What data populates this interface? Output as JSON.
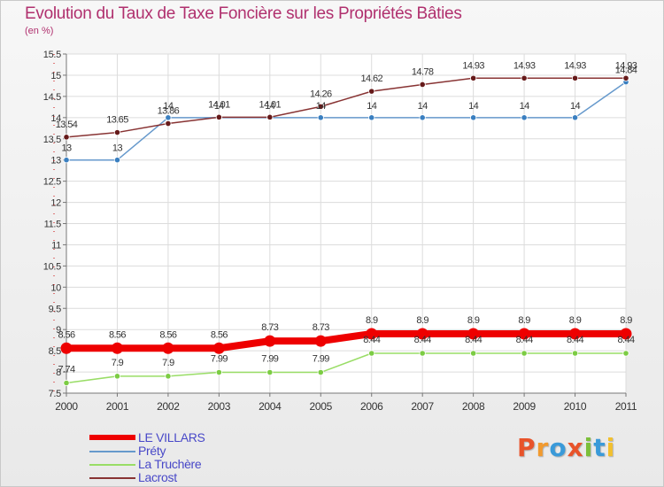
{
  "header": {
    "title": "Evolution du Taux de Taxe Foncière sur les Propriétés Bâties",
    "unit": "(en %)"
  },
  "logo": {
    "text": "Proxiti",
    "letters": [
      {
        "ch": "P",
        "color": "#e8532a"
      },
      {
        "ch": "r",
        "color": "#f29a2e"
      },
      {
        "ch": "o",
        "color": "#3a9ad9"
      },
      {
        "ch": "x",
        "color": "#e8532a"
      },
      {
        "ch": "i",
        "color": "#7cbf3a"
      },
      {
        "ch": "t",
        "color": "#3a9ad9"
      },
      {
        "ch": "i",
        "color": "#f2c02e"
      }
    ]
  },
  "chart_data": {
    "type": "line",
    "title": "Evolution du Taux de Taxe Foncière sur les Propriétés Bâties",
    "ylabel": "(en %)",
    "xlabel": "",
    "x": [
      "2000",
      "2001",
      "2002",
      "2003",
      "2004",
      "2005",
      "2006",
      "2007",
      "2008",
      "2009",
      "2010",
      "2011"
    ],
    "ylim": [
      7.5,
      15.5
    ],
    "yticks": [
      "7.5",
      "8",
      "8.5",
      "9",
      "9.5",
      "10",
      "10.5",
      "11",
      "11.5",
      "12",
      "12.5",
      "13",
      "13.5",
      "14",
      "14.5",
      "15",
      "15.5"
    ],
    "grid": true,
    "legend_position": "bottom-left",
    "series": [
      {
        "name": "LE VILLARS",
        "color": "#ee0000",
        "values": [
          8.56,
          8.56,
          8.56,
          8.56,
          8.73,
          8.73,
          8.9,
          8.9,
          8.9,
          8.9,
          8.9,
          8.9
        ],
        "labels": [
          "8.56",
          "8.56",
          "8.56",
          "8.56",
          "8.73",
          "8.73",
          "8.9",
          "8.9",
          "8.9",
          "8.9",
          "8.9",
          "8.9"
        ]
      },
      {
        "name": "Préty",
        "color": "#6699cc",
        "values": [
          13,
          13,
          14,
          14,
          14,
          14,
          14,
          14,
          14,
          14,
          14,
          14.84
        ],
        "labels": [
          "13",
          "13",
          "14",
          "14",
          "14",
          "14",
          "14",
          "14",
          "14",
          "14",
          "14",
          "14.84"
        ]
      },
      {
        "name": "La Truchère",
        "color": "#99dd66",
        "values": [
          7.74,
          7.9,
          7.9,
          7.99,
          7.99,
          7.99,
          8.44,
          8.44,
          8.44,
          8.44,
          8.44,
          8.44
        ],
        "labels": [
          "7.74",
          "7.9",
          "7.9",
          "7.99",
          "7.99",
          "7.99",
          "8.44",
          "8.44",
          "8.44",
          "8.44",
          "8.44",
          "8.44"
        ]
      },
      {
        "name": "Lacrost",
        "color": "#883333",
        "values": [
          13.54,
          13.65,
          13.86,
          14.01,
          14.01,
          14.26,
          14.62,
          14.78,
          14.93,
          14.93,
          14.93,
          14.93
        ],
        "labels": [
          "13.54",
          "13.65",
          "13.86",
          "14.01",
          "14.01",
          "14.26",
          "14.62",
          "14.78",
          "14.93",
          "14.93",
          "14.93",
          "14.93"
        ]
      }
    ]
  }
}
